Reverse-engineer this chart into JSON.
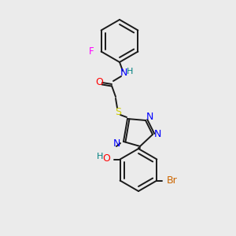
{
  "background_color": "#ebebeb",
  "bond_color": "#1a1a1a",
  "atom_colors": {
    "F": "#ff00ff",
    "O": "#ff0000",
    "N": "#0000ff",
    "H": "#008080",
    "S": "#cccc00",
    "Br": "#cc6600"
  },
  "figsize": [
    3.0,
    3.0
  ],
  "dpi": 100
}
